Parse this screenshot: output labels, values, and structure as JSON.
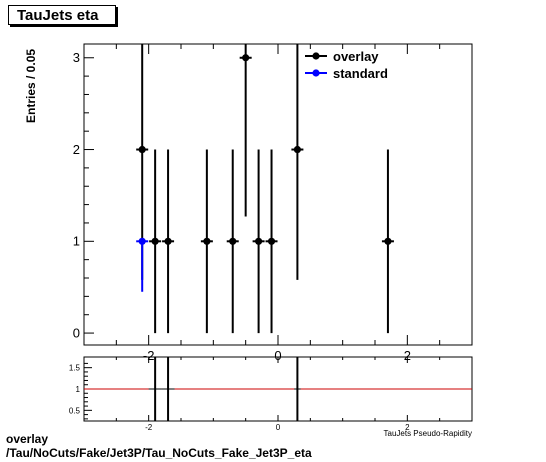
{
  "title": "TauJets eta",
  "footer": {
    "line1": "overlay",
    "line2": "/Tau/NoCuts/Fake/Jet3P/Tau_NoCuts_Fake_Jet3P_eta"
  },
  "colors": {
    "overlay": "#000000",
    "standard": "#0000ff",
    "ratio_line": "#cc0000"
  },
  "chart_data": [
    {
      "type": "scatter",
      "title": "TauJets eta",
      "xlabel": "TauJets Pseudo-Rapidity",
      "ylabel": "Entries / 0.05",
      "xlim": [
        -3,
        3
      ],
      "ylim": [
        -0.13,
        3.15
      ],
      "x_ticks": [
        -2,
        0,
        2
      ],
      "y_ticks": [
        0,
        1,
        2,
        3
      ],
      "legend": {
        "placement": "top-right",
        "entries": [
          "overlay",
          "standard"
        ]
      },
      "series": [
        {
          "name": "overlay",
          "x": [
            -2.1,
            -1.9,
            -1.7,
            -1.1,
            -0.7,
            -0.5,
            -0.3,
            -0.1,
            0.3,
            1.7
          ],
          "y": [
            2,
            1,
            1,
            1,
            1,
            3,
            1,
            1,
            2,
            1
          ],
          "yerr_low": [
            1.42,
            1,
            1,
            1,
            1,
            1.73,
            1,
            1,
            1.42,
            1
          ],
          "yerr_high": [
            2.1,
            1,
            1,
            1,
            1,
            2.3,
            1,
            1,
            2.1,
            1
          ]
        },
        {
          "name": "standard",
          "x": [
            -2.1
          ],
          "y": [
            1
          ],
          "yerr_low": [
            0.55
          ],
          "yerr_high": [
            0
          ]
        }
      ]
    },
    {
      "type": "scatter",
      "title": "",
      "xlabel": "",
      "ylabel": "",
      "xlim": [
        -3,
        3
      ],
      "ylim": [
        0.25,
        1.75
      ],
      "x_ticks": [
        -2,
        0,
        2
      ],
      "y_ticks": [
        0.5,
        1,
        1.5
      ],
      "reference_line": 1,
      "series": [
        {
          "name": "ratio",
          "x": [
            -1.9,
            -1.7,
            0.3
          ],
          "y": [
            1,
            1,
            1
          ],
          "xerr": [
            0.1,
            0.1,
            0.05
          ],
          "yerr": [
            1.5,
            1.5,
            1.5
          ]
        }
      ]
    }
  ]
}
